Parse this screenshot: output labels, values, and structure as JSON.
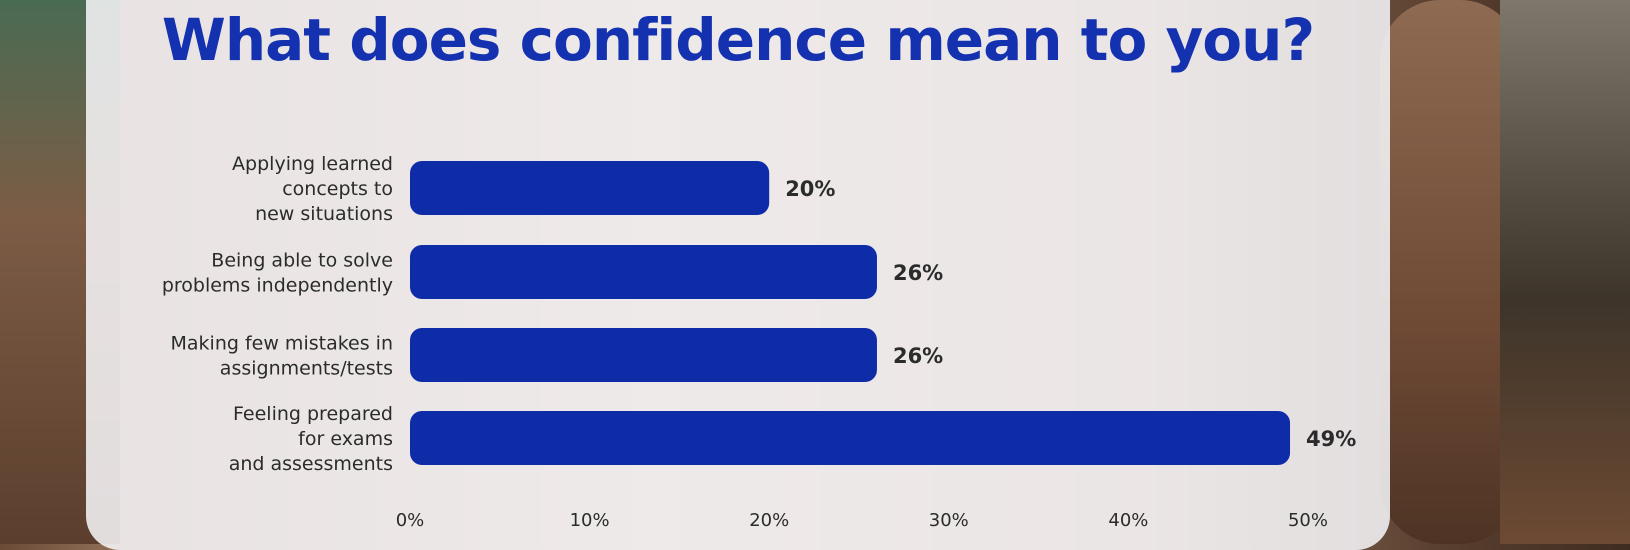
{
  "title": "What does confidence mean to you?",
  "colors": {
    "bar": "#0f2ca8",
    "title": "#1432b0",
    "text": "#2b2b2b"
  },
  "chart_data": {
    "type": "bar",
    "orientation": "horizontal",
    "categories": [
      [
        "Applying learned",
        "concepts to",
        "new situations"
      ],
      [
        "Being able to solve",
        "problems independently"
      ],
      [
        "Making few mistakes in",
        "assignments/tests"
      ],
      [
        "Feeling prepared",
        "for exams",
        "and assessments"
      ]
    ],
    "values": [
      20,
      26,
      26,
      49
    ],
    "value_labels": [
      "20%",
      "26%",
      "26%",
      "49%"
    ],
    "xlim": [
      0,
      50
    ],
    "xticks": [
      "0%",
      "10%",
      "20%",
      "30%",
      "40%",
      "50%"
    ],
    "grid": false,
    "legend": "none"
  }
}
